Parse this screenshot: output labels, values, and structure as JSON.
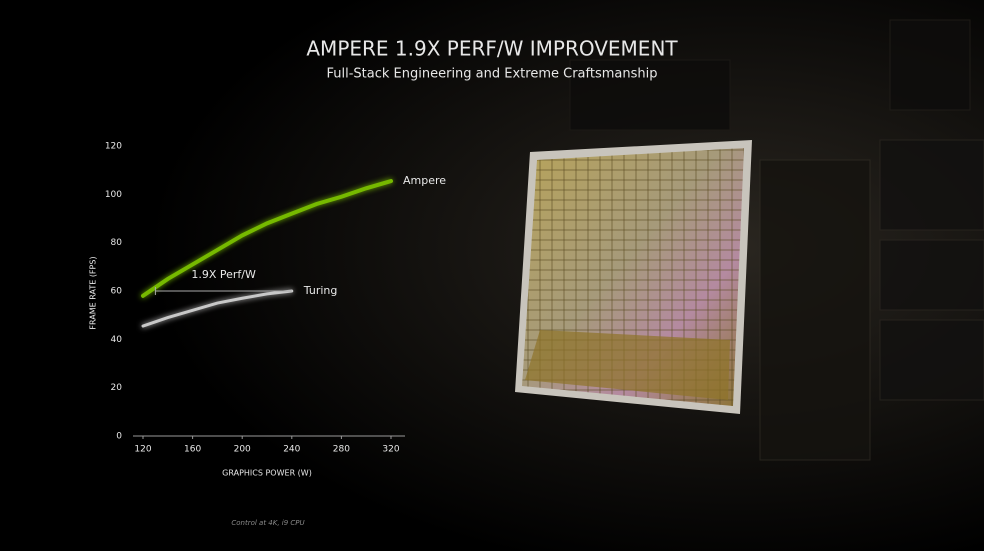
{
  "chart_data": {
    "type": "line",
    "title": "AMPERE 1.9X PERF/W IMPROVEMENT",
    "subtitle": "Full-Stack Engineering and Extreme Craftsmanship",
    "x_label": "GRAPHICS POWER (W)",
    "y_label": "FRAME RATE (FPS)",
    "note": "Control at 4K, i9 CPU",
    "x": [
      120,
      140,
      160,
      180,
      200,
      220,
      240,
      260,
      280,
      300,
      320
    ],
    "series": [
      {
        "name": "Ampere",
        "color": "#76b900",
        "values": [
          58,
          65,
          71,
          77,
          83,
          88,
          92,
          96,
          99,
          102.5,
          105.5
        ]
      },
      {
        "name": "Turing",
        "color": "#c8c8c8",
        "values": [
          45.5,
          49,
          52,
          55,
          57,
          58.8,
          60,
          null,
          null,
          null,
          null
        ]
      }
    ],
    "annotation": {
      "text": "1.9X Perf/W",
      "x": [
        130,
        240
      ],
      "y": 60
    },
    "xlim": [
      120,
      320
    ],
    "xticks": [
      120,
      160,
      200,
      240,
      280,
      320
    ],
    "ylim": [
      0,
      120
    ],
    "yticks": [
      0,
      20,
      40,
      60,
      80,
      100,
      120
    ],
    "grid": false
  }
}
